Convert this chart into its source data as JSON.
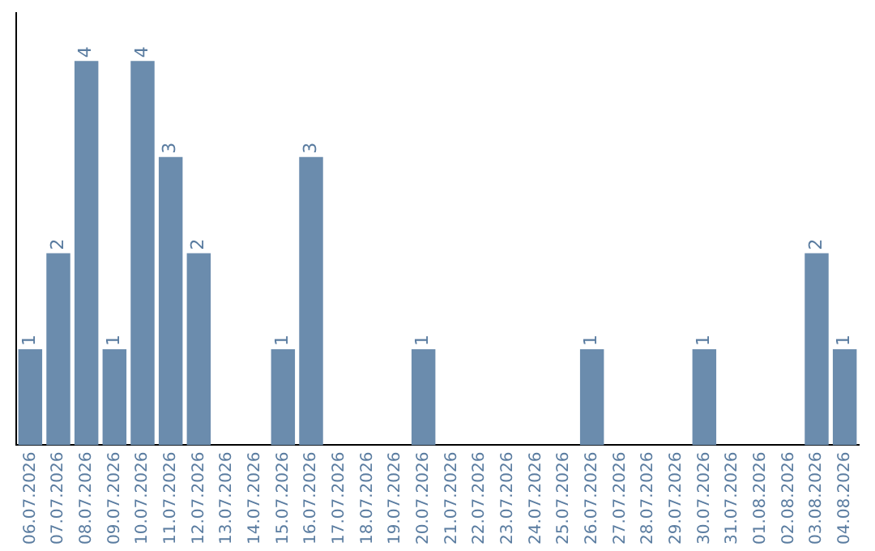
{
  "chart_data": {
    "type": "bar",
    "categories": [
      "06.07.2026",
      "07.07.2026",
      "08.07.2026",
      "09.07.2026",
      "10.07.2026",
      "11.07.2026",
      "12.07.2026",
      "13.07.2026",
      "14.07.2026",
      "15.07.2026",
      "16.07.2026",
      "17.07.2026",
      "18.07.2026",
      "19.07.2026",
      "20.07.2026",
      "21.07.2026",
      "22.07.2026",
      "23.07.2026",
      "24.07.2026",
      "25.07.2026",
      "26.07.2026",
      "27.07.2026",
      "28.07.2026",
      "29.07.2026",
      "30.07.2026",
      "31.07.2026",
      "01.08.2026",
      "02.08.2026",
      "03.08.2026",
      "04.08.2026"
    ],
    "values": [
      1,
      2,
      4,
      1,
      4,
      3,
      2,
      0,
      0,
      1,
      3,
      0,
      0,
      0,
      1,
      0,
      0,
      0,
      0,
      0,
      1,
      0,
      0,
      0,
      1,
      0,
      0,
      0,
      2,
      1
    ],
    "value_labels": [
      "1",
      "2",
      "4",
      "1",
      "4",
      "3",
      "2",
      null,
      null,
      "1",
      "3",
      null,
      null,
      null,
      "1",
      null,
      null,
      null,
      null,
      null,
      "1",
      null,
      null,
      null,
      "1",
      null,
      null,
      null,
      "2",
      "1"
    ],
    "color": "#6b8cad",
    "grid": false,
    "legend": false,
    "tick_labels": "x"
  }
}
